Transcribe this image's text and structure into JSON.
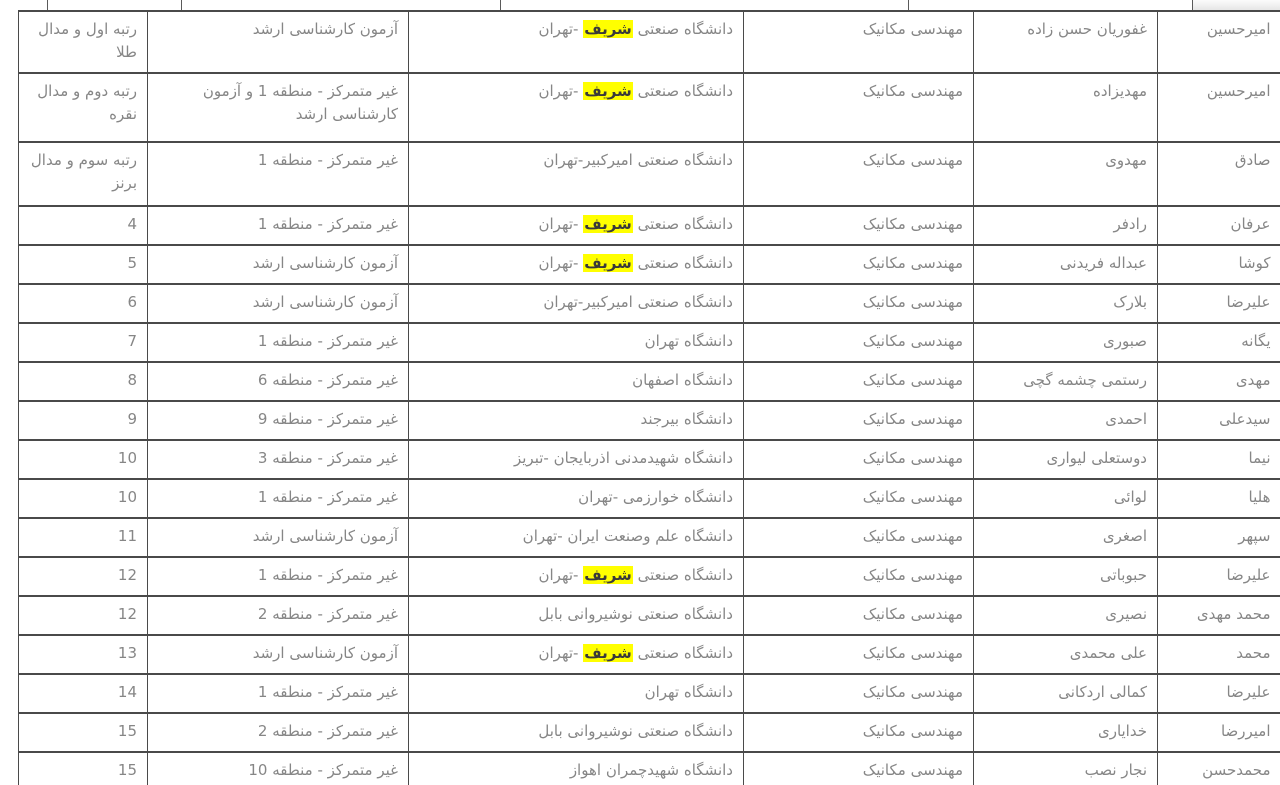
{
  "colors": {
    "highlight_background": "#ffff00",
    "table_border": "#4a4a4a",
    "cell_text": "#868686"
  },
  "search_highlight_term": "شریف",
  "table": {
    "columns": [
      "first_name",
      "last_name",
      "field",
      "university",
      "admission",
      "rank"
    ],
    "rows": [
      {
        "first_name": "امیرحسین",
        "last_name": "غفوریان حسن زاده",
        "field": "مهندسی مکانیک",
        "university": "دانشگاه صنعتی شریف -تهران",
        "highlight": "شریف",
        "admission": "آزمون کارشناسی ارشد",
        "rank": "رتبه اول و مدال طلا"
      },
      {
        "first_name": "امیرحسین",
        "last_name": "مهدیزاده",
        "field": "مهندسی مکانیک",
        "university": "دانشگاه صنعتی شریف -تهران",
        "highlight": "شریف",
        "admission": "غیر متمرکز - منطقه 1 و آزمون کارشناسی ارشد",
        "rank": "رتبه دوم و مدال نقره"
      },
      {
        "first_name": "صادق",
        "last_name": "مهدوی",
        "field": "مهندسی مکانیک",
        "university": "دانشگاه صنعتی امیرکبیر-تهران",
        "highlight": null,
        "admission": "غیر متمرکز - منطقه 1",
        "rank": "رتبه سوم و مدال برنز"
      },
      {
        "first_name": "عرفان",
        "last_name": "رادفر",
        "field": "مهندسی مکانیک",
        "university": "دانشگاه صنعتی شریف -تهران",
        "highlight": "شریف",
        "admission": "غیر متمرکز - منطقه 1",
        "rank": "4"
      },
      {
        "first_name": "کوشا",
        "last_name": "عبداله فریدنی",
        "field": "مهندسی مکانیک",
        "university": "دانشگاه صنعتی شریف -تهران",
        "highlight": "شریف",
        "admission": "آزمون کارشناسی ارشد",
        "rank": "5"
      },
      {
        "first_name": "علیرضا",
        "last_name": "بلارک",
        "field": "مهندسی مکانیک",
        "university": "دانشگاه صنعتی امیرکبیر-تهران",
        "highlight": null,
        "admission": "آزمون کارشناسی ارشد",
        "rank": "6"
      },
      {
        "first_name": "یگانه",
        "last_name": "صبوری",
        "field": "مهندسی مکانیک",
        "university": "دانشگاه تهران",
        "highlight": null,
        "admission": "غیر متمرکز - منطقه 1",
        "rank": "7"
      },
      {
        "first_name": "مهدی",
        "last_name": "رستمی چشمه گچی",
        "field": "مهندسی مکانیک",
        "university": "دانشگاه اصفهان",
        "highlight": null,
        "admission": "غیر متمرکز - منطقه 6",
        "rank": "8"
      },
      {
        "first_name": "سیدعلی",
        "last_name": "احمدی",
        "field": "مهندسی مکانیک",
        "university": "دانشگاه بیرجند",
        "highlight": null,
        "admission": "غیر متمرکز - منطقه 9",
        "rank": "9"
      },
      {
        "first_name": "نیما",
        "last_name": "دوستعلی لیواری",
        "field": "مهندسی مکانیک",
        "university": "دانشگاه شهیدمدنی اذربایجان -تبریز",
        "highlight": null,
        "admission": "غیر متمرکز - منطقه 3",
        "rank": "10"
      },
      {
        "first_name": "هلیا",
        "last_name": "لوائی",
        "field": "مهندسی مکانیک",
        "university": "دانشگاه خوارزمی -تهران",
        "highlight": null,
        "admission": "غیر متمرکز - منطقه 1",
        "rank": "10"
      },
      {
        "first_name": "سپهر",
        "last_name": "اصغری",
        "field": "مهندسی مکانیک",
        "university": "دانشگاه علم وصنعت ایران -تهران",
        "highlight": null,
        "admission": "آزمون کارشناسی ارشد",
        "rank": "11"
      },
      {
        "first_name": "علیرضا",
        "last_name": "حبوباتی",
        "field": "مهندسی مکانیک",
        "university": "دانشگاه صنعتی شریف -تهران",
        "highlight": "شریف",
        "admission": "غیر متمرکز - منطقه 1",
        "rank": "12"
      },
      {
        "first_name": "محمد مهدی",
        "last_name": "نصیری",
        "field": "مهندسی مکانیک",
        "university": "دانشگاه صنعتی نوشیروانی بابل",
        "highlight": null,
        "admission": "غیر متمرکز - منطقه 2",
        "rank": "12"
      },
      {
        "first_name": "محمد",
        "last_name": "علی محمدی",
        "field": "مهندسی مکانیک",
        "university": "دانشگاه صنعتی شریف -تهران",
        "highlight": "شریف",
        "admission": "آزمون کارشناسی ارشد",
        "rank": "13"
      },
      {
        "first_name": "علیرضا",
        "last_name": "کمالی اردکانی",
        "field": "مهندسی مکانیک",
        "university": "دانشگاه تهران",
        "highlight": null,
        "admission": "غیر متمرکز - منطقه 1",
        "rank": "14"
      },
      {
        "first_name": "امیررضا",
        "last_name": "خدایاری",
        "field": "مهندسی مکانیک",
        "university": "دانشگاه صنعتی نوشیروانی بابل",
        "highlight": null,
        "admission": "غیر متمرکز - منطقه 2",
        "rank": "15"
      },
      {
        "first_name": "محمدحسن",
        "last_name": "نجار نصب",
        "field": "مهندسی مکانیک",
        "university": "دانشگاه شهیدچمران اهواز",
        "highlight": null,
        "admission": "غیر متمرکز - منطقه 10",
        "rank": "15"
      }
    ]
  }
}
